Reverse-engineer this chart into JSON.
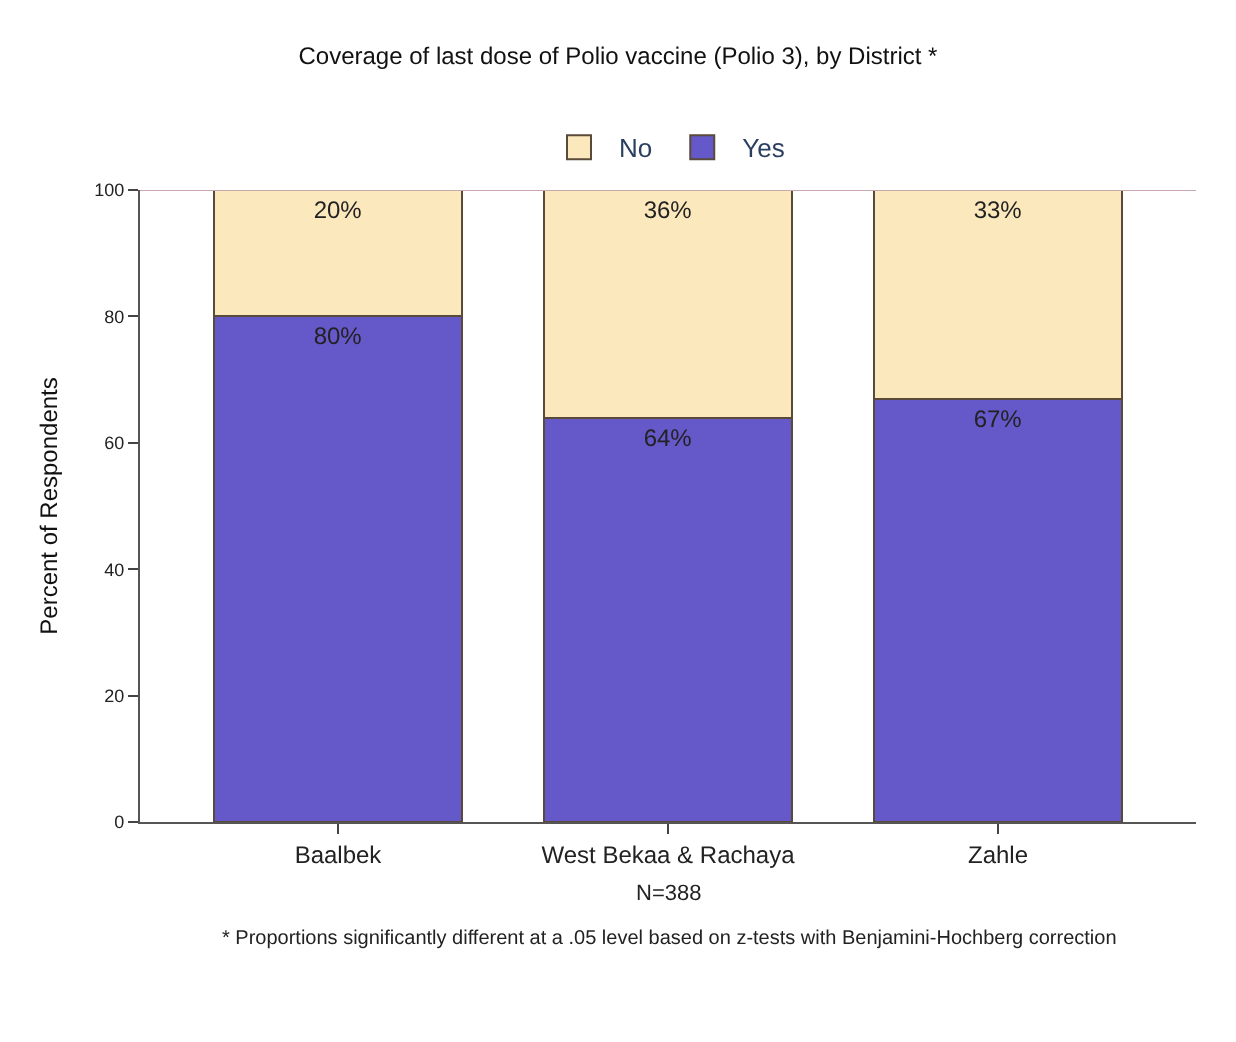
{
  "chart_data": {
    "type": "bar",
    "title": "Coverage of last dose of Polio vaccine (Polio 3), by District *",
    "categories": [
      "Baalbek",
      "West Bekaa & Rachaya",
      "Zahle"
    ],
    "stacked": true,
    "series": [
      {
        "name": "Yes",
        "color": "#6558c8",
        "values": [
          80,
          64,
          67
        ],
        "value_labels": [
          "80%",
          "64%",
          "67%"
        ]
      },
      {
        "name": "No",
        "color": "#fce8bd",
        "values": [
          20,
          36,
          33
        ],
        "value_labels": [
          "20%",
          "36%",
          "33%"
        ]
      }
    ],
    "ylabel": "Percent of Respondents",
    "ylim": [
      0,
      100
    ],
    "yticks": [
      0,
      20,
      40,
      60,
      80,
      100
    ],
    "legend": "top",
    "annotations": [
      "N=388",
      "* Proportions significantly different at a .05 level based on z-tests with Benjamini-Hochberg correction"
    ]
  }
}
